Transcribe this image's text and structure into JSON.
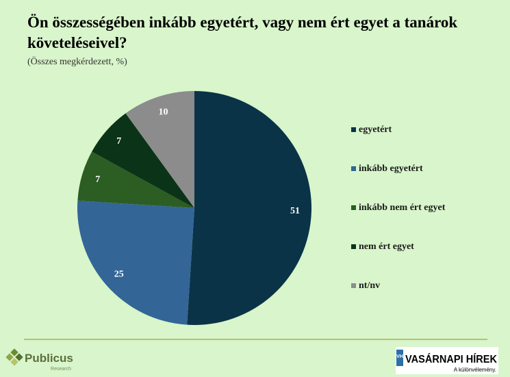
{
  "chart_data": {
    "type": "pie",
    "title": "Ön összességében inkább egyetért, vagy nem ért egyet a tanárok követeléseivel?",
    "subtitle": "(Összes megkérdezett, %)",
    "categories": [
      "egyetért",
      "inkább egyetért",
      "inkább nem ért egyet",
      "nem ért egyet",
      "nt/nv"
    ],
    "values": [
      51,
      25,
      7,
      7,
      10
    ],
    "colors": [
      "#0b3347",
      "#336597",
      "#2c5d23",
      "#0b3318",
      "#8c8c8c"
    ],
    "legend": "right"
  },
  "footer": {
    "left_logo": "Publicus",
    "left_logo_sub": "Research",
    "right_logo_badge": "VH",
    "right_logo": "VASÁRNAPI HÍREK",
    "right_logo_sub": "A különvélemény."
  }
}
